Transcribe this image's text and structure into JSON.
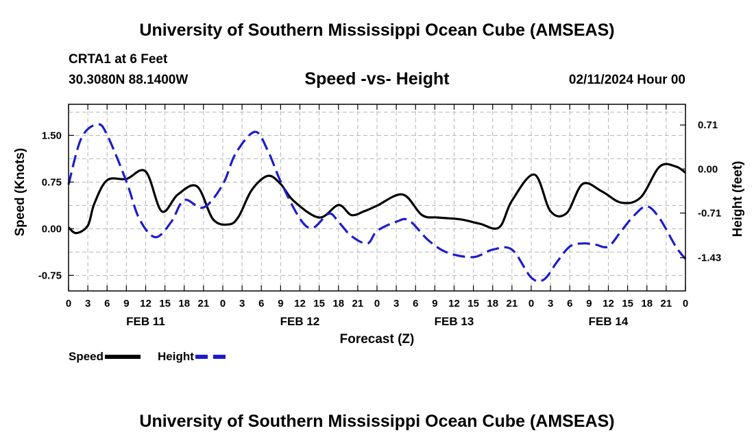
{
  "header": {
    "title": "University of Southern Mississippi Ocean Cube (AMSEAS)",
    "station": "CRTA1 at 6 Feet",
    "coords": "30.3080N  88.1400W",
    "subtitle": "Speed -vs- Height",
    "datetime": "02/11/2024 Hour 00"
  },
  "footer": {
    "title": "University of Southern Mississippi Ocean Cube (AMSEAS)"
  },
  "legend": {
    "speed_label": "Speed",
    "height_label": "Height"
  },
  "colors": {
    "speed": "#000000",
    "height": "#1c1ccc",
    "grid": "#b4b4b4"
  },
  "chart_data": {
    "type": "line",
    "title": "Speed -vs- Height",
    "xlabel": "Forecast (Z)",
    "ylabel": "Speed (Knots)",
    "y2label": "Height (feet)",
    "xlim": [
      0,
      96
    ],
    "ylim": [
      -1.0,
      2.0
    ],
    "y2lim": [
      -1.966,
      1.044
    ],
    "grid": true,
    "x_ticks": [
      0,
      3,
      6,
      9,
      12,
      15,
      18,
      21,
      24,
      27,
      30,
      33,
      36,
      39,
      42,
      45,
      48,
      51,
      54,
      57,
      60,
      63,
      66,
      69,
      72,
      75,
      78,
      81,
      84,
      87,
      90,
      93,
      96
    ],
    "x_tick_labels": [
      "0",
      "3",
      "6",
      "9",
      "12",
      "15",
      "18",
      "21",
      "0",
      "3",
      "6",
      "9",
      "12",
      "15",
      "18",
      "21",
      "0",
      "3",
      "6",
      "9",
      "12",
      "15",
      "18",
      "21",
      "0",
      "3",
      "6",
      "9",
      "12",
      "15",
      "18",
      "21",
      "0"
    ],
    "day_labels": [
      {
        "label": "FEB 11",
        "x": 12
      },
      {
        "label": "FEB 12",
        "x": 36
      },
      {
        "label": "FEB 13",
        "x": 60
      },
      {
        "label": "FEB 14",
        "x": 84
      }
    ],
    "y_ticks": [
      -0.75,
      0.0,
      0.75,
      1.5
    ],
    "y_tick_labels": [
      "-0.75",
      "0.00",
      "0.75",
      "1.50"
    ],
    "y2_ticks": [
      -1.43,
      -0.71,
      0.0,
      0.71
    ],
    "y2_tick_labels": [
      "-1.43",
      "-0.71",
      "0.00",
      "0.71"
    ],
    "series": [
      {
        "name": "Speed",
        "axis": "left",
        "style": "solid",
        "x": [
          0,
          1.2,
          3,
          4,
          6,
          9,
          12,
          14.5,
          17,
          20,
          22.5,
          25,
          26.5,
          28.5,
          31,
          33,
          35,
          39,
          42,
          44,
          46,
          48,
          52,
          55,
          57.5,
          61,
          64,
          67,
          69,
          72.5,
          75,
          77.5,
          80,
          83,
          86,
          89,
          92,
          94.5,
          96
        ],
        "values": [
          0.02,
          -0.07,
          0.05,
          0.4,
          0.78,
          0.8,
          0.92,
          0.28,
          0.55,
          0.68,
          0.15,
          0.07,
          0.2,
          0.62,
          0.85,
          0.72,
          0.45,
          0.18,
          0.38,
          0.22,
          0.28,
          0.37,
          0.55,
          0.22,
          0.18,
          0.15,
          0.08,
          0.02,
          0.45,
          0.87,
          0.28,
          0.25,
          0.72,
          0.6,
          0.42,
          0.5,
          1.0,
          1.0,
          0.9
        ]
      },
      {
        "name": "Height",
        "axis": "right",
        "style": "dashed",
        "x": [
          0,
          2,
          4.5,
          6,
          9,
          11,
          13.5,
          16,
          18,
          21,
          24,
          26,
          29,
          31,
          33,
          36,
          38,
          40.5,
          42,
          44,
          46.5,
          48,
          51,
          53,
          56,
          59,
          63,
          66,
          69,
          72,
          74,
          76,
          78,
          80,
          82,
          84,
          86,
          88,
          90,
          92,
          94.5,
          96
        ],
        "values": [
          -0.25,
          0.5,
          0.72,
          0.55,
          -0.2,
          -0.8,
          -1.1,
          -0.85,
          -0.5,
          -0.62,
          -0.25,
          0.25,
          0.6,
          0.3,
          -0.2,
          -0.8,
          -0.95,
          -0.72,
          -0.85,
          -1.08,
          -1.2,
          -1.0,
          -0.85,
          -0.83,
          -1.15,
          -1.35,
          -1.42,
          -1.3,
          -1.3,
          -1.75,
          -1.78,
          -1.5,
          -1.25,
          -1.2,
          -1.22,
          -1.25,
          -1.0,
          -0.75,
          -0.6,
          -0.8,
          -1.25,
          -1.45
        ]
      }
    ]
  }
}
